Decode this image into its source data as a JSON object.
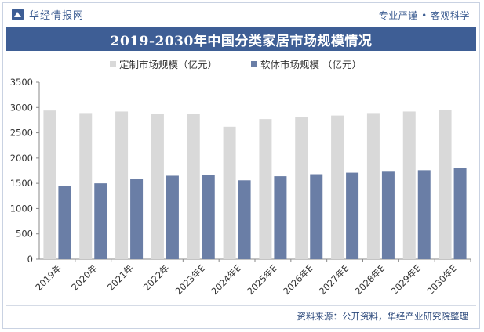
{
  "header": {
    "brand": "华经情报网",
    "slogan": "专业严谨 • 客观科学"
  },
  "chart_data": {
    "type": "bar",
    "title": "2019-2030年中国分类家居市场规模情况",
    "categories": [
      "2019年",
      "2020年",
      "2021年",
      "2022年",
      "2023年E",
      "2024年E",
      "2025年E",
      "2026年E",
      "2027年E",
      "2028年E",
      "2029年E",
      "2030年E"
    ],
    "series": [
      {
        "name": "定制市场规模（亿元）",
        "color": "#d9d9d9",
        "values": [
          2940,
          2890,
          2920,
          2880,
          2870,
          2620,
          2770,
          2810,
          2840,
          2890,
          2920,
          2950
        ]
      },
      {
        "name": "软体市场规模 （亿元）",
        "color": "#6a7ea6",
        "values": [
          1450,
          1500,
          1590,
          1650,
          1660,
          1560,
          1640,
          1680,
          1710,
          1730,
          1760,
          1800
        ]
      }
    ],
    "ylim": [
      0,
      3500
    ],
    "yticks": [
      0,
      500,
      1000,
      1500,
      2000,
      2500,
      3000,
      3500
    ],
    "legend_position": "top-left",
    "grid": false
  },
  "footer": {
    "source": "资料来源：公开资料，华经产业研究院整理"
  }
}
